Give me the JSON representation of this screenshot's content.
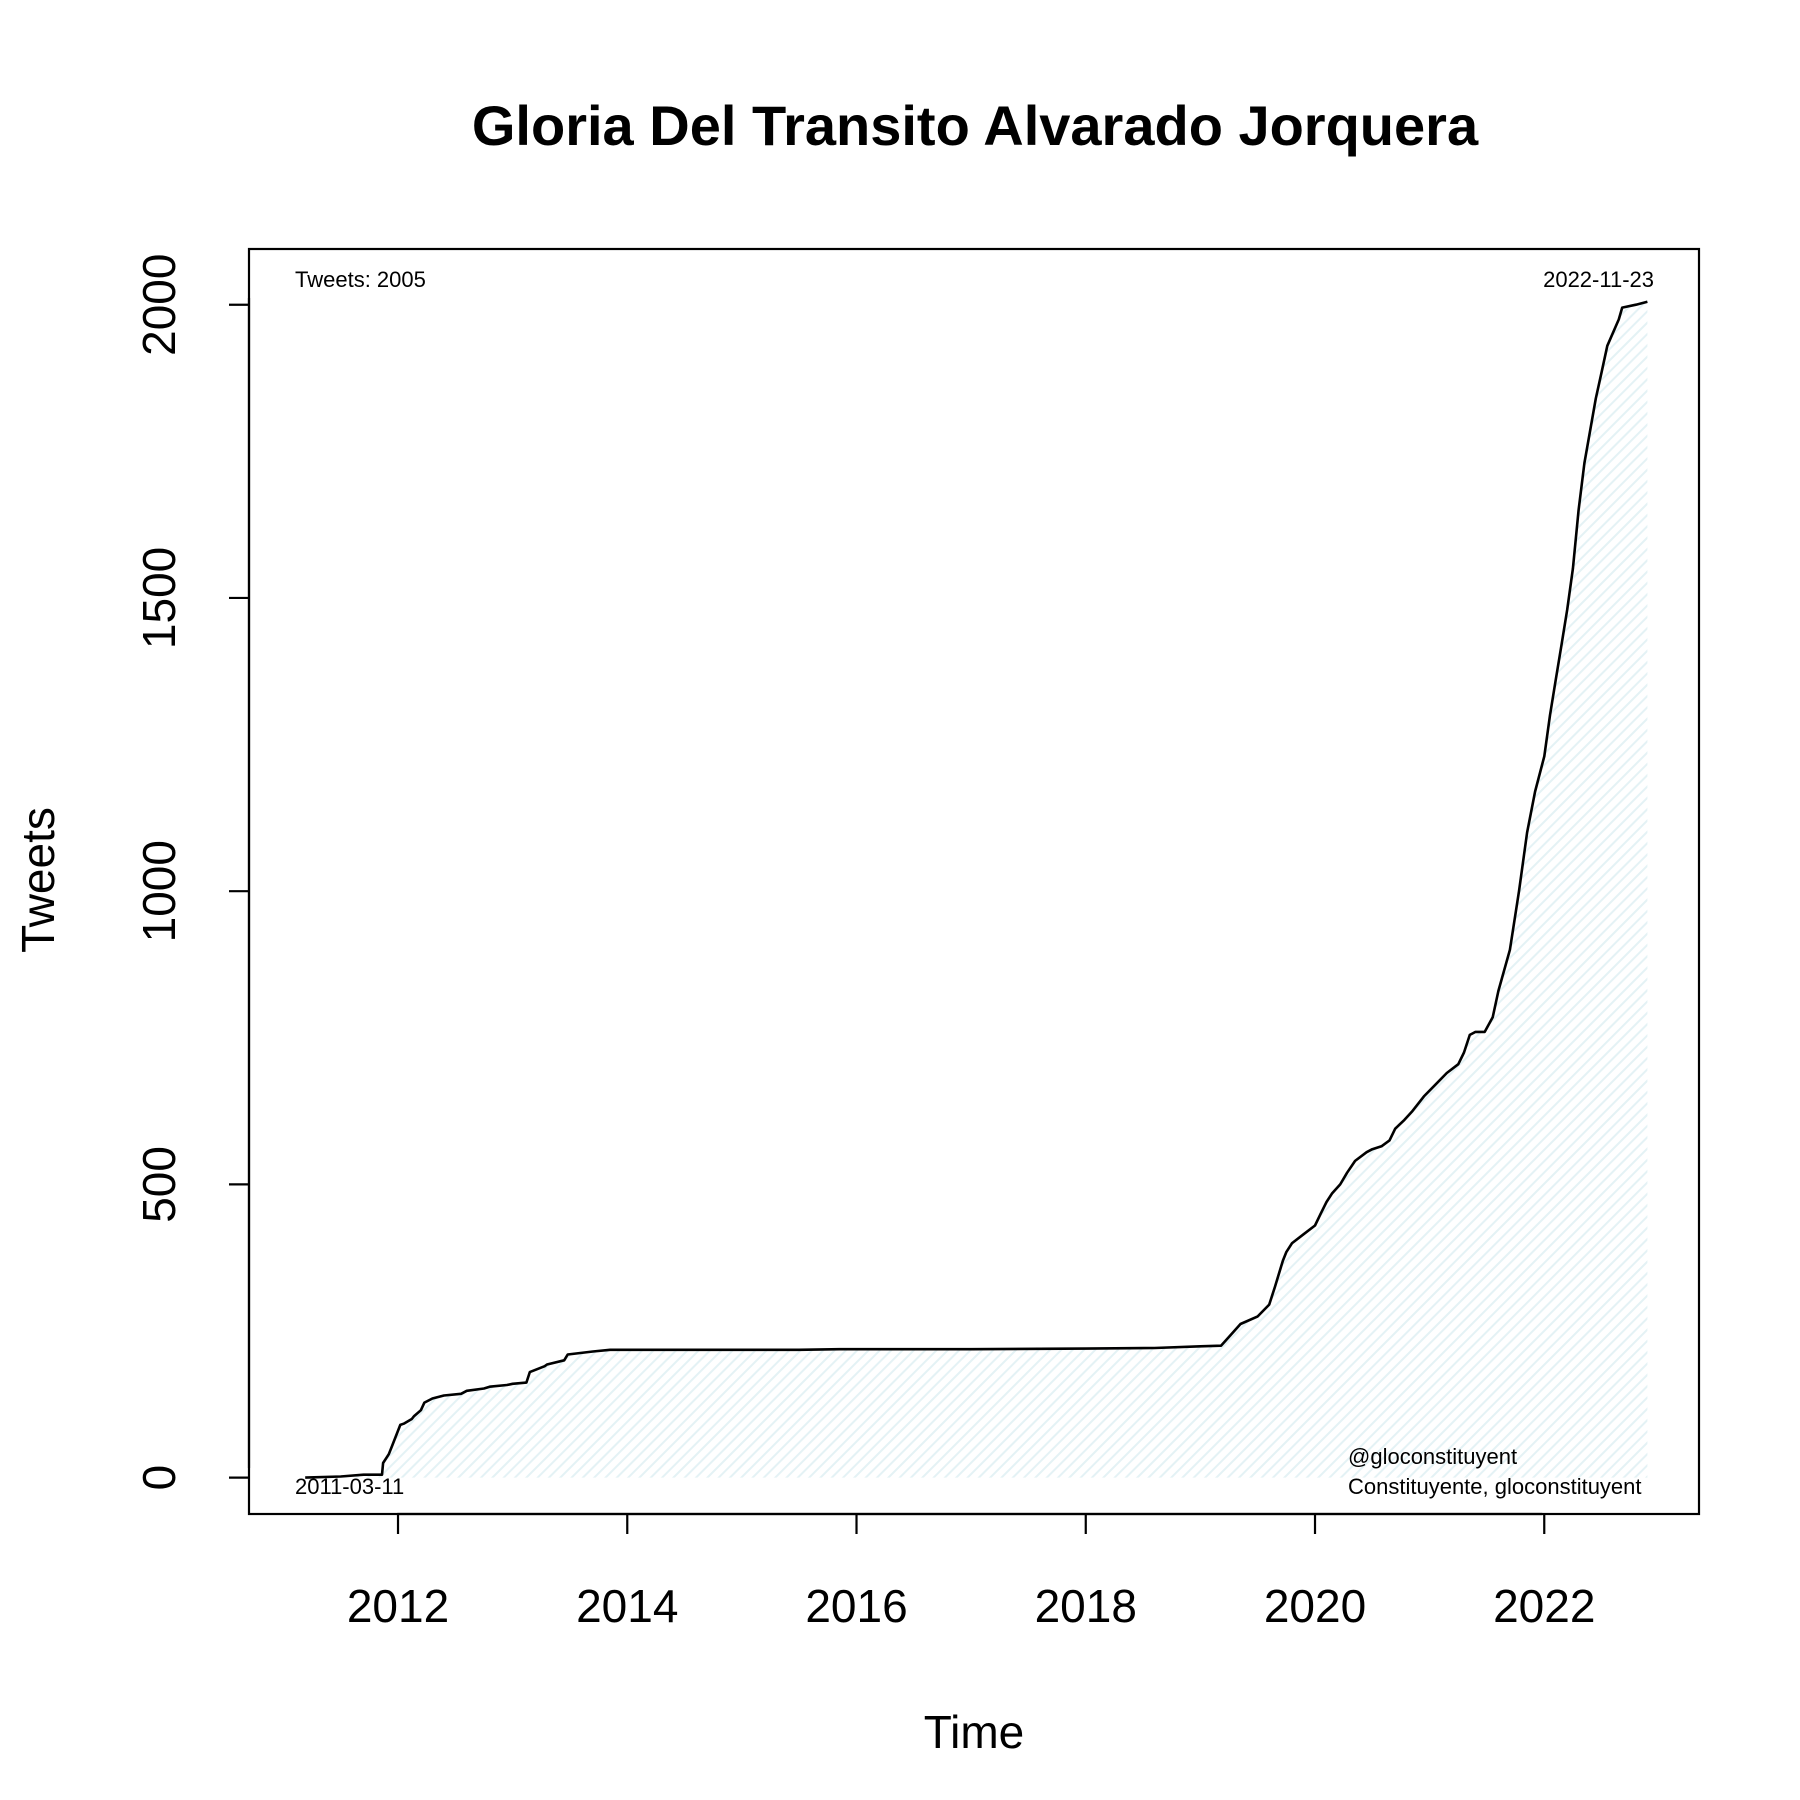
{
  "chart_data": {
    "type": "line",
    "title": "Gloria Del Transito Alvarado Jorquera",
    "xlabel": "Time",
    "ylabel": "Tweets",
    "xlim": [
      2010.7,
      2023.35
    ],
    "ylim": [
      -62,
      2095
    ],
    "x_ticks": [
      2012,
      2014,
      2016,
      2018,
      2020,
      2022
    ],
    "y_ticks": [
      0,
      500,
      1000,
      1500,
      2000
    ],
    "grid": false,
    "legend": "none",
    "annotations": {
      "total": "Tweets: 2005",
      "start_date": "2011-03-11",
      "end_date": "2022-11-23",
      "handle": "@gloconstituyent",
      "names": "Constituyente, gloconstituyent"
    },
    "colors": {
      "line": "#000000",
      "fill": "#e4f2f5"
    },
    "series": [
      {
        "x": [
          2011.19,
          2011.5,
          2011.7,
          2011.86,
          2011.87,
          2011.92,
          2011.95,
          2012.02,
          2012.05,
          2012.12,
          2012.14,
          2012.2,
          2012.23,
          2012.3,
          2012.4,
          2012.55,
          2012.6,
          2012.75,
          2012.8,
          2012.95,
          2013.0,
          2013.12,
          2013.15,
          2013.28,
          2013.3,
          2013.45,
          2013.48,
          2013.7,
          2013.85,
          2014.5,
          2015.0,
          2015.5,
          2015.85,
          2016.0,
          2017.0,
          2018.0,
          2018.6,
          2019.0,
          2019.18,
          2019.25,
          2019.35,
          2019.5,
          2019.6,
          2019.65,
          2019.72,
          2019.75,
          2019.8,
          2019.9,
          2020.0,
          2020.05,
          2020.1,
          2020.15,
          2020.22,
          2020.28,
          2020.35,
          2020.45,
          2020.5,
          2020.58,
          2020.65,
          2020.7,
          2020.78,
          2020.85,
          2020.95,
          2021.05,
          2021.15,
          2021.25,
          2021.3,
          2021.35,
          2021.4,
          2021.48,
          2021.55,
          2021.6,
          2021.7,
          2021.78,
          2021.85,
          2021.92,
          2022.0,
          2022.05,
          2022.1,
          2022.15,
          2022.2,
          2022.25,
          2022.3,
          2022.35,
          2022.45,
          2022.5,
          2022.55,
          2022.65,
          2022.68,
          2022.8,
          2022.9
        ],
        "y": [
          0,
          2,
          5,
          5,
          25,
          40,
          55,
          90,
          92,
          100,
          105,
          115,
          128,
          135,
          140,
          143,
          148,
          152,
          155,
          158,
          160,
          162,
          180,
          190,
          193,
          200,
          210,
          215,
          218,
          218,
          218,
          218,
          219,
          219,
          219,
          220,
          221,
          224,
          225,
          240,
          262,
          275,
          295,
          325,
          370,
          385,
          400,
          415,
          430,
          450,
          470,
          485,
          500,
          520,
          540,
          555,
          560,
          565,
          575,
          595,
          610,
          625,
          650,
          670,
          690,
          705,
          725,
          755,
          760,
          760,
          785,
          830,
          900,
          1000,
          1100,
          1170,
          1230,
          1300,
          1360,
          1420,
          1480,
          1550,
          1650,
          1730,
          1840,
          1885,
          1930,
          1975,
          1995,
          2000,
          2005
        ]
      }
    ]
  }
}
